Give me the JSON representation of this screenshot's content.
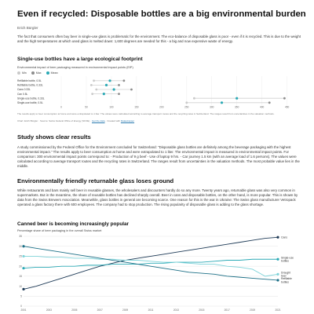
{
  "article": {
    "title": "Even if recycled: Disposable bottles are a big environmental burden",
    "author": "Erich Bürgler",
    "intro": "The fact that consumers often buy beer in single-use glass is problematic for the environment. The eco-balance of disposable glass is poor - even if it is recycled. This is due to the weight and the high temperatures at which used glass is melted down: 1,600 degrees are needed for this - a big and now expensive waste of energy."
  },
  "chart1": {
    "heading": "Single-use bottles have a large ecological footprint",
    "subtitle": "Environmental impact of beer packaging measured in environmental impact points (EIP)",
    "legend": [
      {
        "label": "Min",
        "color": "#c9c9c9"
      },
      {
        "label": "Max",
        "color": "#8c8c8c"
      },
      {
        "label": "Mean",
        "color": "#2aa9b5"
      }
    ],
    "note": "The results apply to beer consumption at home and were extrapolated to 1 liter. The values were calculated according to average transport routes and the recycling rates in Switzerland. The ranges result from uncertainties in the valuation methods.",
    "source_line": "Chart: Erich Bürgler · Source: Swiss Federal Office of Energy (SFOE) ·",
    "source_link": "Get the data",
    "source_suffix": "· Created with",
    "source_tool": "Datawrapper"
  },
  "chart1_data": {
    "type": "range-dot",
    "title": "Single-use bottles have a large ecological footprint",
    "subtitle": "Environmental impact of beer packaging measured in environmental impact points (EIP)",
    "categories": [
      "Refillable bottle, 0.5L",
      "Refillable bottle, 0.33L",
      "Cans 0.33L",
      "Can 0.5L",
      "Single-use bottle, 0.33L",
      "Single-use bottle, 0.5L"
    ],
    "min": [
      65,
      60,
      70,
      62,
      265,
      250
    ],
    "max": [
      125,
      115,
      140,
      115,
      445,
      415
    ],
    "mean": [
      97,
      90,
      105,
      85,
      350,
      320
    ],
    "xticks": [
      0,
      50,
      100,
      150,
      200,
      250,
      300,
      350,
      400,
      450
    ],
    "xlim": [
      0,
      460
    ]
  },
  "section1": {
    "heading": "Study shows clear results",
    "body": "A study commissioned by the Federal Office for the Environment concluded for Switzerland: \"Disposable glass bottles are definitely among the beverage packaging with the highest environmental impact.\" The results apply to beer consumption at home and were extrapolated to 1 liter. The environmental impact is measured in environmental impact points. For comparison: 300 environmental impact points correspond to: - Production of 9 g beef - Use of laptop 9 hrs. - Car journey 1.5 km (with an average load of 1.6 persons). The values were calculated according to average transport routes and the recycling rates in Switzerland. The ranges result from uncertainties in the valuation methods. The most probable value lies in the middle."
  },
  "section2": {
    "heading": "Environmentally friendly returnable glass loses ground",
    "body": "While restaurants and bars mainly sell beer in reusable glasses, the wholesalers and discounters hardly do so any more. Twenty years ago, returnable glass was also very common in supermarkets. But in the meantime, the share of reusable bottles has declined sharply overall. Beer in cans and disposable bottles, on the other hand, is more popular. This is shown by data from the Swiss Brewers Association. Meanwhile, glass bottles in general are becoming scarce. One reason for this is the war in Ukraine: The Swiss glass manufacturer Vetropack operated a glass factory there with 600 employees. The company had to stop production. The rising popularity of disposable glass is adding to the glass shortage."
  },
  "chart2": {
    "heading": "Canned beer is becoming increasingly popular",
    "subtitle": "Percentage share of beer packaging in the overall Swiss market"
  },
  "chart2_data": {
    "type": "line",
    "title": "Canned beer is becoming increasingly popular",
    "subtitle": "Percentage share of beer packaging in the overall Swiss market",
    "x": [
      2001,
      2002,
      2003,
      2004,
      2005,
      2006,
      2007,
      2008,
      2009,
      2010,
      2011,
      2012,
      2013,
      2014,
      2015,
      2016,
      2017,
      2018,
      2019,
      2020,
      2021
    ],
    "ylim": [
      0,
      35
    ],
    "yticks": [
      0,
      5,
      10,
      15,
      20,
      25,
      30,
      35
    ],
    "xticks": [
      2001,
      2003,
      2005,
      2007,
      2009,
      2011,
      2013,
      2015,
      2017,
      2019,
      2021
    ],
    "series": [
      {
        "name": "Cans",
        "color": "#1f3b57",
        "values": [
          8.5,
          10,
          12,
          14,
          16,
          18,
          20,
          21.5,
          23,
          24,
          25,
          26,
          27,
          28,
          29,
          30,
          31,
          32,
          33,
          34,
          34.5
        ]
      },
      {
        "name": "Single-use bottles",
        "color": "#2aa9b5",
        "values": [
          19,
          19.5,
          19.5,
          20,
          20,
          20.5,
          20.5,
          21,
          21,
          21,
          21.5,
          21.5,
          22,
          22,
          22,
          22.5,
          23,
          23,
          23.5,
          23.5,
          23.5
        ]
      },
      {
        "name": "Draught beer",
        "color": "#7fd3d9",
        "values": [
          25,
          25,
          24.5,
          24.5,
          24,
          24,
          23.5,
          23.5,
          23,
          23,
          22.5,
          22,
          22,
          21.5,
          21,
          21,
          20,
          19.5,
          18.5,
          15,
          16
        ]
      },
      {
        "name": "Refillable bottles",
        "color": "#1c6f86",
        "values": [
          30,
          29,
          28,
          27,
          26,
          25,
          24,
          23,
          22,
          21,
          20,
          19,
          18,
          17,
          16.5,
          16,
          15,
          14.5,
          14,
          13.5,
          13
        ]
      }
    ],
    "end_labels": [
      "Cans",
      "Single-use bottles",
      "Draught beer",
      "Refillable bottles"
    ]
  }
}
